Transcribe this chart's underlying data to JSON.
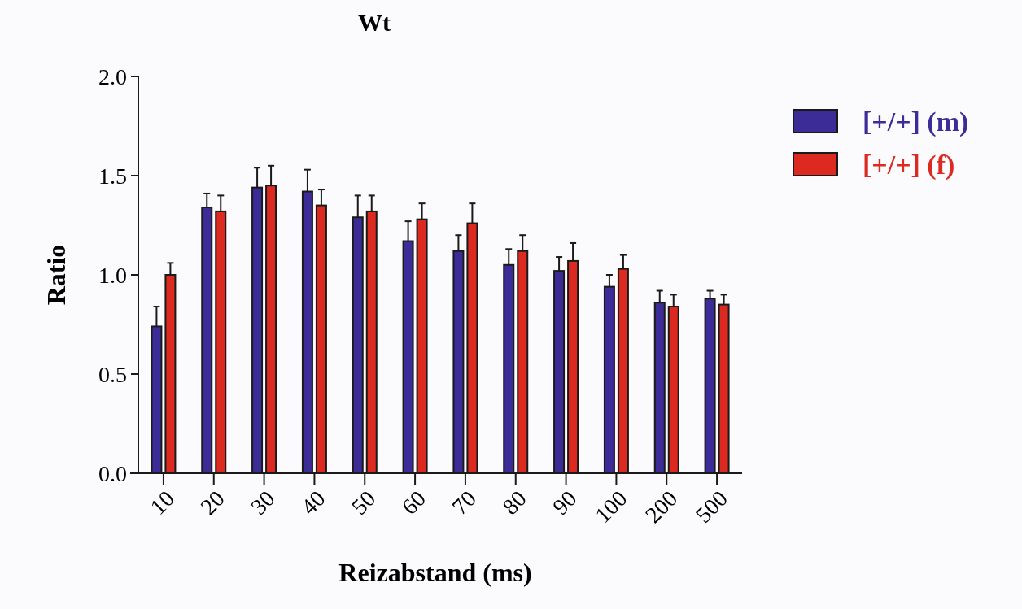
{
  "chart_data": {
    "type": "bar",
    "title": "Wt",
    "xlabel": "Reizabstand (ms)",
    "ylabel": "Ratio",
    "categories": [
      "10",
      "20",
      "30",
      "40",
      "50",
      "60",
      "70",
      "80",
      "90",
      "100",
      "200",
      "500"
    ],
    "series": [
      {
        "name": "[+/+] (m)",
        "color": "#3c2c98",
        "values": [
          0.74,
          1.34,
          1.44,
          1.42,
          1.29,
          1.17,
          1.12,
          1.05,
          1.02,
          0.94,
          0.86,
          0.88
        ],
        "errors": [
          [
            0.74,
            0.84
          ],
          [
            1.34,
            1.41
          ],
          [
            1.44,
            1.54
          ],
          [
            1.42,
            1.53
          ],
          [
            1.29,
            1.4
          ],
          [
            1.17,
            1.27
          ],
          [
            1.12,
            1.2
          ],
          [
            1.05,
            1.13
          ],
          [
            1.02,
            1.09
          ],
          [
            0.94,
            1.0
          ],
          [
            0.86,
            0.92
          ],
          [
            0.88,
            0.92
          ]
        ]
      },
      {
        "name": "[+/+] (f)",
        "color": "#dc2a20",
        "values": [
          1.0,
          1.32,
          1.45,
          1.35,
          1.32,
          1.28,
          1.26,
          1.12,
          1.07,
          1.03,
          0.84,
          0.85
        ],
        "errors": [
          [
            1.0,
            1.06
          ],
          [
            1.32,
            1.4
          ],
          [
            1.45,
            1.55
          ],
          [
            1.35,
            1.43
          ],
          [
            1.32,
            1.4
          ],
          [
            1.28,
            1.36
          ],
          [
            1.26,
            1.36
          ],
          [
            1.12,
            1.2
          ],
          [
            1.07,
            1.16
          ],
          [
            1.03,
            1.1
          ],
          [
            0.84,
            0.9
          ],
          [
            0.85,
            0.9
          ]
        ]
      }
    ],
    "ylim": [
      0,
      2
    ],
    "yticks": [
      {
        "value": 0,
        "label": "0.0"
      },
      {
        "value": 0.5,
        "label": "0.5"
      },
      {
        "value": 1,
        "label": "1.0"
      },
      {
        "value": 1.5,
        "label": "1.5"
      },
      {
        "value": 2,
        "label": "2.0"
      }
    ],
    "legend": "right",
    "grid": false
  }
}
